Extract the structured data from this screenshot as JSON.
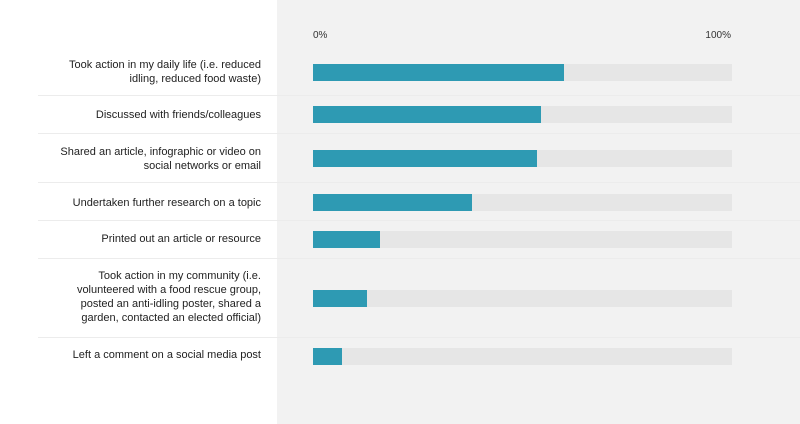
{
  "chart_data": {
    "type": "bar",
    "orientation": "horizontal",
    "x_tick_labels": [
      "0%",
      "100%"
    ],
    "xlim": [
      0,
      100
    ],
    "categories": [
      "Took action in my daily life (i.e. reduced\nidling, reduced food waste)",
      "Discussed with friends/colleagues",
      "Shared an article, infographic or video on\nsocial networks or email",
      "Undertaken further research on a topic",
      "Printed out an article or resource",
      "Took action in my community (i.e.\nvolunteered with a food rescue group,\nposted an anti-idling poster, shared a\ngarden, contacted an elected official)",
      "Left a comment on a social media post"
    ],
    "values": [
      60,
      54.5,
      53.5,
      38,
      16,
      13,
      7
    ],
    "grid": false,
    "legend": "none",
    "colors": {
      "bar": "#2e9ab3",
      "track": "#e6e6e6",
      "panel": "#f2f2f2"
    }
  }
}
